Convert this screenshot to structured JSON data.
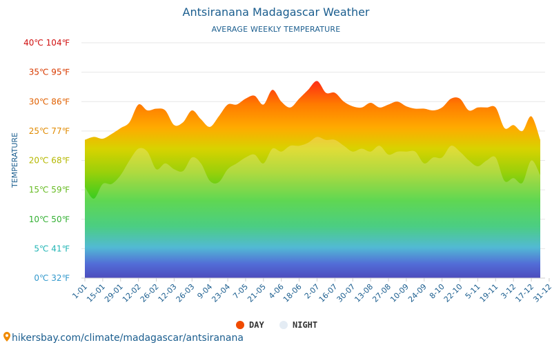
{
  "chart_data": {
    "type": "area",
    "title": "Antsiranana Madagascar Weather",
    "subtitle": "AVERAGE WEEKLY TEMPERATURE",
    "ylabel": "TEMPERATURE",
    "ylim": [
      0,
      40
    ],
    "yticks": [
      {
        "value": 0,
        "label": "0℃ 32℉",
        "color": "#3399cc"
      },
      {
        "value": 5,
        "label": "5℃ 41℉",
        "color": "#22b5b5"
      },
      {
        "value": 10,
        "label": "10℃ 50℉",
        "color": "#33b033"
      },
      {
        "value": 15,
        "label": "15℃ 59℉",
        "color": "#66bb22"
      },
      {
        "value": 20,
        "label": "20℃ 68℉",
        "color": "#b5b800"
      },
      {
        "value": 25,
        "label": "25℃ 77℉",
        "color": "#e08a00"
      },
      {
        "value": 30,
        "label": "30℃ 86℉",
        "color": "#e06000"
      },
      {
        "value": 35,
        "label": "35℃ 95℉",
        "color": "#d83a00"
      },
      {
        "value": 40,
        "label": "40℃ 104℉",
        "color": "#d01010"
      }
    ],
    "xtick_labels": [
      "1-01",
      "15-01",
      "29-01",
      "12-02",
      "26-02",
      "12-03",
      "26-03",
      "9-04",
      "23-04",
      "7-05",
      "21-05",
      "4-06",
      "18-06",
      "2-07",
      "16-07",
      "30-07",
      "13-08",
      "27-08",
      "10-09",
      "24-09",
      "8-10",
      "22-10",
      "5-11",
      "19-11",
      "3-12",
      "17-12",
      "31-12"
    ],
    "xtick_weeks": [
      0,
      2,
      4,
      6,
      8,
      10,
      12,
      14,
      16,
      18,
      20,
      22,
      24,
      26,
      28,
      30,
      32,
      34,
      36,
      38,
      40,
      42,
      44,
      46,
      48,
      50,
      52
    ],
    "series": [
      {
        "name": "DAY",
        "color": "#f04a00",
        "values": [
          23.5,
          24,
          23.7,
          24.5,
          25.5,
          26.5,
          29.5,
          28.5,
          28.8,
          28.5,
          26,
          26.5,
          28.5,
          27,
          25.7,
          27.5,
          29.5,
          29.5,
          30.5,
          31,
          29.5,
          32,
          30,
          29,
          30.5,
          32,
          33.5,
          31.5,
          31.5,
          30,
          29.2,
          29,
          29.8,
          29,
          29.5,
          30,
          29.2,
          28.8,
          28.8,
          28.5,
          29,
          30.5,
          30.5,
          28.5,
          29,
          29,
          29,
          25.5,
          26,
          25,
          27.5,
          23.5
        ]
      },
      {
        "name": "NIGHT",
        "color": "#e4ecf4",
        "values": [
          15.5,
          13.5,
          16,
          16,
          17.5,
          20,
          22,
          21.5,
          18.5,
          19.5,
          18.5,
          18.2,
          20.5,
          19.5,
          16.5,
          16.3,
          18.5,
          19.5,
          20.5,
          21,
          19.5,
          22,
          21.5,
          22.5,
          22.5,
          23,
          24,
          23.5,
          23.5,
          22.5,
          21.5,
          22,
          21.5,
          22.5,
          21,
          21.5,
          21.5,
          21.5,
          19.5,
          20.5,
          20.5,
          22.5,
          21.5,
          20,
          19,
          20,
          20.5,
          16.5,
          17,
          16.2,
          20,
          17.5
        ]
      }
    ],
    "legend_position": "bottom-center",
    "grid": true
  },
  "legend": {
    "day_label": "DAY",
    "night_label": "NIGHT"
  },
  "footer": {
    "url": "hikersbay.com/climate/madagascar/antsiranana"
  }
}
